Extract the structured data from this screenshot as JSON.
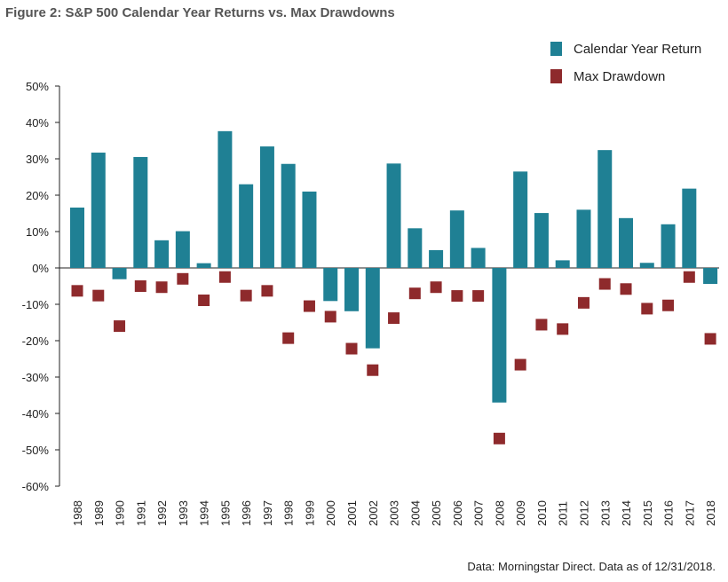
{
  "chart_data": {
    "type": "bar",
    "title": "Figure 2: S&P 500 Calendar Year Returns vs. Max Drawdowns",
    "source": "Data: Morningstar Direct. Data as of 12/31/2018.",
    "categories": [
      "1988",
      "1989",
      "1990",
      "1991",
      "1992",
      "1993",
      "1994",
      "1995",
      "1996",
      "1997",
      "1998",
      "1999",
      "2000",
      "2001",
      "2002",
      "2003",
      "2004",
      "2005",
      "2006",
      "2007",
      "2008",
      "2009",
      "2010",
      "2011",
      "2012",
      "2013",
      "2014",
      "2015",
      "2016",
      "2017",
      "2018"
    ],
    "series": [
      {
        "name": "Calendar Year Return",
        "kind": "bar",
        "color": "#1f8094",
        "values": [
          16.6,
          31.7,
          -3.1,
          30.5,
          7.6,
          10.1,
          1.3,
          37.6,
          23.0,
          33.4,
          28.6,
          21.0,
          -9.1,
          -11.9,
          -22.1,
          28.7,
          10.9,
          4.9,
          15.8,
          5.5,
          -37.0,
          26.5,
          15.1,
          2.1,
          16.0,
          32.4,
          13.7,
          1.4,
          12.0,
          21.8,
          -4.4
        ]
      },
      {
        "name": "Max Drawdown",
        "kind": "marker",
        "color": "#8e2a2c",
        "values": [
          -6.3,
          -7.6,
          -16.0,
          -5.0,
          -5.3,
          -3.0,
          -8.9,
          -2.5,
          -7.6,
          -6.3,
          -19.3,
          -10.5,
          -13.4,
          -22.2,
          -28.1,
          -13.8,
          -7.0,
          -5.3,
          -7.7,
          -7.7,
          -46.9,
          -26.6,
          -15.6,
          -16.8,
          -9.6,
          -4.4,
          -5.8,
          -11.2,
          -10.3,
          -2.5,
          -19.5
        ]
      }
    ],
    "yticks": [
      "50%",
      "40%",
      "30%",
      "20%",
      "10%",
      "0%",
      "-10%",
      "-20%",
      "-30%",
      "-40%",
      "-50%",
      "-60%"
    ],
    "ylim": [
      -60,
      50
    ],
    "grid": false,
    "legend": "top-right"
  }
}
